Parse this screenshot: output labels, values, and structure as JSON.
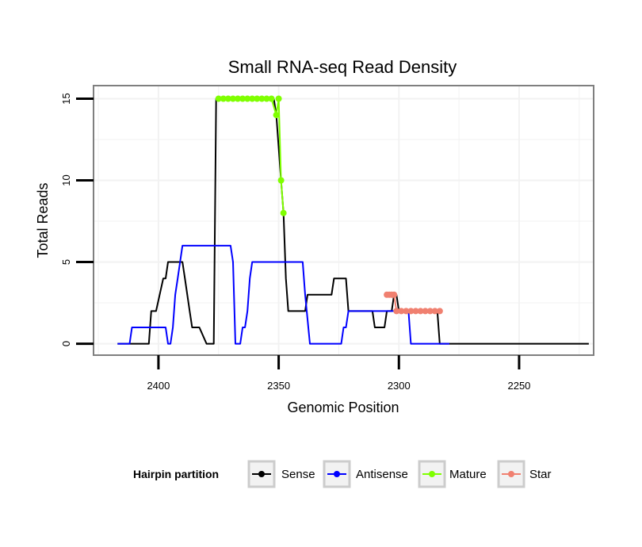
{
  "chart_data": {
    "type": "line",
    "title": "Small RNA-seq Read Density",
    "xlabel": "Genomic Position",
    "ylabel": "Total Reads",
    "x_reversed": true,
    "xlim": [
      2427,
      2219
    ],
    "ylim": [
      -0.7,
      15.8
    ],
    "x_ticks": [
      2400,
      2350,
      2300,
      2250
    ],
    "x_tick_labels": [
      "2400",
      "2350",
      "2300",
      "2250"
    ],
    "y_ticks": [
      0,
      5,
      10,
      15
    ],
    "y_tick_labels": [
      "0",
      "5",
      "10",
      "15"
    ],
    "grid": true,
    "legend": {
      "title": "Hairpin partition",
      "position": "bottom",
      "entries": [
        "Sense",
        "Antisense",
        "Mature",
        "Star"
      ]
    },
    "colors": {
      "Sense": "#000000",
      "Antisense": "#0000ff",
      "Mature": "#7fff00",
      "Star": "#f08070",
      "grid": "#f2f2f2",
      "panel_border": "#7f7f7f"
    },
    "series": [
      {
        "name": "Sense",
        "x": [
          2417,
          2404,
          2403,
          2401,
          2398,
          2397,
          2396,
          2390,
          2389,
          2388,
          2387,
          2386,
          2383,
          2380,
          2377,
          2376,
          2375,
          2352,
          2351,
          2349,
          2348,
          2347,
          2346,
          2345,
          2339,
          2338,
          2328,
          2327,
          2322,
          2321,
          2311,
          2310,
          2306,
          2305,
          2303,
          2302,
          2301,
          2300,
          2284,
          2283,
          2221
        ],
        "y": [
          0,
          0,
          2,
          2,
          4,
          4,
          5,
          5,
          4,
          3,
          2,
          1,
          1,
          0,
          0,
          15,
          15,
          15,
          14,
          10,
          8,
          4,
          2,
          2,
          2,
          3,
          3,
          4,
          4,
          2,
          2,
          1,
          1,
          2,
          2,
          3,
          3,
          2,
          2,
          0,
          0
        ]
      },
      {
        "name": "Antisense",
        "x": [
          2417,
          2412,
          2411,
          2397,
          2396,
          2395,
          2394,
          2393,
          2392,
          2391,
          2390,
          2389,
          2370,
          2369,
          2368,
          2366,
          2365,
          2364,
          2363,
          2362,
          2361,
          2360,
          2340,
          2339,
          2337,
          2324,
          2323,
          2322,
          2321,
          2320,
          2296,
          2295,
          2279
        ],
        "y": [
          0,
          0,
          1,
          1,
          0,
          0,
          1,
          3,
          4,
          5,
          6,
          6,
          6,
          5,
          0,
          0,
          1,
          1,
          2,
          4,
          5,
          5,
          5,
          3,
          0,
          0,
          1,
          1,
          2,
          2,
          2,
          0,
          0
        ]
      },
      {
        "name": "Mature",
        "x": [
          2375,
          2373,
          2371,
          2369,
          2367,
          2365,
          2363,
          2361,
          2359,
          2357,
          2355,
          2353,
          2351,
          2350,
          2349,
          2348
        ],
        "y": [
          15,
          15,
          15,
          15,
          15,
          15,
          15,
          15,
          15,
          15,
          15,
          15,
          14,
          15,
          10,
          8
        ]
      },
      {
        "name": "Star",
        "x": [
          2305,
          2304,
          2303,
          2302,
          2301,
          2299,
          2297,
          2295,
          2293,
          2291,
          2289,
          2287,
          2285,
          2283
        ],
        "y": [
          3,
          3,
          3,
          3,
          2,
          2,
          2,
          2,
          2,
          2,
          2,
          2,
          2,
          2
        ]
      }
    ]
  }
}
